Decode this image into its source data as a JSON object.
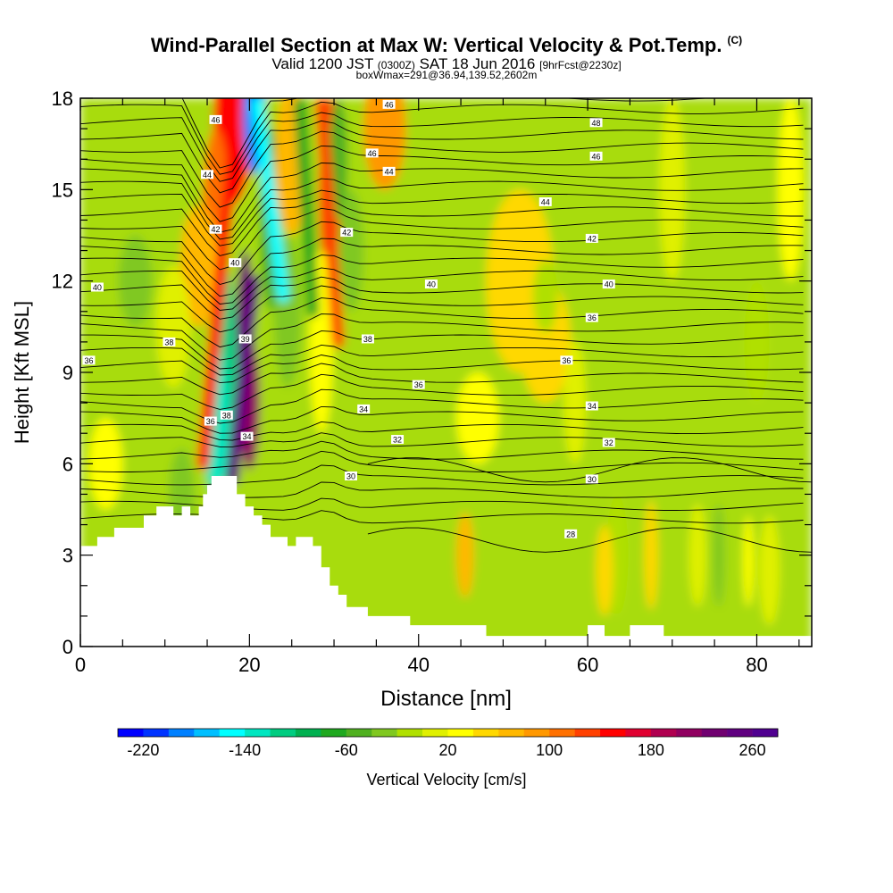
{
  "header": {
    "title": "Wind-Parallel Section at Max W: Vertical Velocity & Pot.Temp.",
    "title_mark": "(C)",
    "valid_prefix": "Valid 1200 JST",
    "valid_utc": "(0300Z)",
    "valid_date": "SAT 18 Jun 2016",
    "forecast": "[9hrFcst@2230z]",
    "box_info": "boxWmax=291@36.94,139.52,2602m"
  },
  "chart_data": {
    "type": "heatmap",
    "xlabel": "Distance [nm]",
    "ylabel": "Height [Kft MSL]",
    "xlim": [
      0,
      86.5
    ],
    "ylim": [
      0,
      18
    ],
    "x_ticks": [
      0,
      20,
      40,
      60,
      80
    ],
    "y_ticks": [
      0,
      3,
      6,
      9,
      12,
      15,
      18
    ],
    "colorbar": {
      "label": "Vertical Velocity [cm/s]",
      "tick_labels": [
        "-220",
        "-140",
        "-60",
        "20",
        "100",
        "180",
        "260"
      ],
      "tick_values": [
        -220,
        -140,
        -60,
        20,
        100,
        180,
        260
      ],
      "min": -240,
      "max": 280,
      "colors": [
        "#0000ff",
        "#0033ff",
        "#0080ff",
        "#00bfff",
        "#00ffff",
        "#00e6c0",
        "#00cc80",
        "#00b050",
        "#1fa81f",
        "#50b020",
        "#80c820",
        "#b0e000",
        "#e0f000",
        "#ffff00",
        "#ffd800",
        "#ffb800",
        "#ff9800",
        "#ff7000",
        "#ff4000",
        "#ff0000",
        "#e00030",
        "#b00050",
        "#900060",
        "#700070",
        "#600080",
        "#500090"
      ]
    },
    "terrain_kft": [
      [
        0,
        3.3
      ],
      [
        2,
        3.3
      ],
      [
        2,
        3.6
      ],
      [
        4,
        3.6
      ],
      [
        4,
        3.9
      ],
      [
        7.5,
        3.9
      ],
      [
        7.5,
        4.3
      ],
      [
        9,
        4.3
      ],
      [
        9,
        4.6
      ],
      [
        11,
        4.6
      ],
      [
        11,
        4.3
      ],
      [
        12,
        4.3
      ],
      [
        12,
        4.6
      ],
      [
        13,
        4.6
      ],
      [
        13,
        4.3
      ],
      [
        14,
        4.3
      ],
      [
        14,
        4.6
      ],
      [
        14.5,
        4.6
      ],
      [
        14.5,
        5
      ],
      [
        15,
        5
      ],
      [
        15,
        5.3
      ],
      [
        15.5,
        5.3
      ],
      [
        15.5,
        5.6
      ],
      [
        18.5,
        5.6
      ],
      [
        18.5,
        5
      ],
      [
        19.5,
        5
      ],
      [
        19.5,
        4.6
      ],
      [
        20.5,
        4.6
      ],
      [
        20.5,
        4.3
      ],
      [
        21.5,
        4.3
      ],
      [
        21.5,
        4
      ],
      [
        22.5,
        4
      ],
      [
        22.5,
        3.6
      ],
      [
        24.5,
        3.6
      ],
      [
        24.5,
        3.3
      ],
      [
        25.5,
        3.3
      ],
      [
        25.5,
        3.6
      ],
      [
        27.5,
        3.6
      ],
      [
        27.5,
        3.3
      ],
      [
        28.5,
        3.3
      ],
      [
        28.5,
        2.6
      ],
      [
        29.5,
        2.6
      ],
      [
        29.5,
        2
      ],
      [
        30.5,
        2
      ],
      [
        30.5,
        1.7
      ],
      [
        31.5,
        1.7
      ],
      [
        31.5,
        1.3
      ],
      [
        34,
        1.3
      ],
      [
        34,
        1
      ],
      [
        39,
        1
      ],
      [
        39,
        0.7
      ],
      [
        48,
        0.7
      ],
      [
        48,
        0.35
      ],
      [
        60,
        0.35
      ],
      [
        60,
        0.7
      ],
      [
        62,
        0.7
      ],
      [
        62,
        0.35
      ],
      [
        65,
        0.35
      ],
      [
        65,
        0.7
      ],
      [
        69,
        0.7
      ],
      [
        69,
        0.35
      ],
      [
        86.5,
        0.35
      ]
    ],
    "theta_labels": [
      {
        "text": "46",
        "x": 16,
        "y": 17.3
      },
      {
        "text": "44",
        "x": 15,
        "y": 15.5
      },
      {
        "text": "42",
        "x": 16,
        "y": 13.7
      },
      {
        "text": "40",
        "x": 18.3,
        "y": 12.6
      },
      {
        "text": "39",
        "x": 19.5,
        "y": 10.1
      },
      {
        "text": "38",
        "x": 17.3,
        "y": 7.6
      },
      {
        "text": "36",
        "x": 15.4,
        "y": 7.4
      },
      {
        "text": "34",
        "x": 19.7,
        "y": 6.9
      },
      {
        "text": "46",
        "x": 36.5,
        "y": 17.8
      },
      {
        "text": "46",
        "x": 34.5,
        "y": 16.2
      },
      {
        "text": "44",
        "x": 36.5,
        "y": 15.6
      },
      {
        "text": "42",
        "x": 31.5,
        "y": 13.6
      },
      {
        "text": "40",
        "x": 2,
        "y": 11.8
      },
      {
        "text": "38",
        "x": 10.5,
        "y": 10.0
      },
      {
        "text": "36",
        "x": 1,
        "y": 9.4
      },
      {
        "text": "40",
        "x": 41.5,
        "y": 11.9
      },
      {
        "text": "38",
        "x": 34,
        "y": 10.1
      },
      {
        "text": "36",
        "x": 40,
        "y": 8.6
      },
      {
        "text": "34",
        "x": 33.5,
        "y": 7.8
      },
      {
        "text": "32",
        "x": 37.5,
        "y": 6.8
      },
      {
        "text": "30",
        "x": 32,
        "y": 5.6
      },
      {
        "text": "48",
        "x": 61,
        "y": 17.2
      },
      {
        "text": "46",
        "x": 61,
        "y": 16.1
      },
      {
        "text": "44",
        "x": 55,
        "y": 14.6
      },
      {
        "text": "42",
        "x": 60.5,
        "y": 13.4
      },
      {
        "text": "40",
        "x": 62.5,
        "y": 11.9
      },
      {
        "text": "36",
        "x": 60.5,
        "y": 10.8
      },
      {
        "text": "36",
        "x": 57.5,
        "y": 9.4
      },
      {
        "text": "34",
        "x": 60.5,
        "y": 7.9
      },
      {
        "text": "32",
        "x": 62.5,
        "y": 6.7
      },
      {
        "text": "30",
        "x": 60.5,
        "y": 5.5
      },
      {
        "text": "28",
        "x": 58,
        "y": 3.7
      }
    ]
  }
}
